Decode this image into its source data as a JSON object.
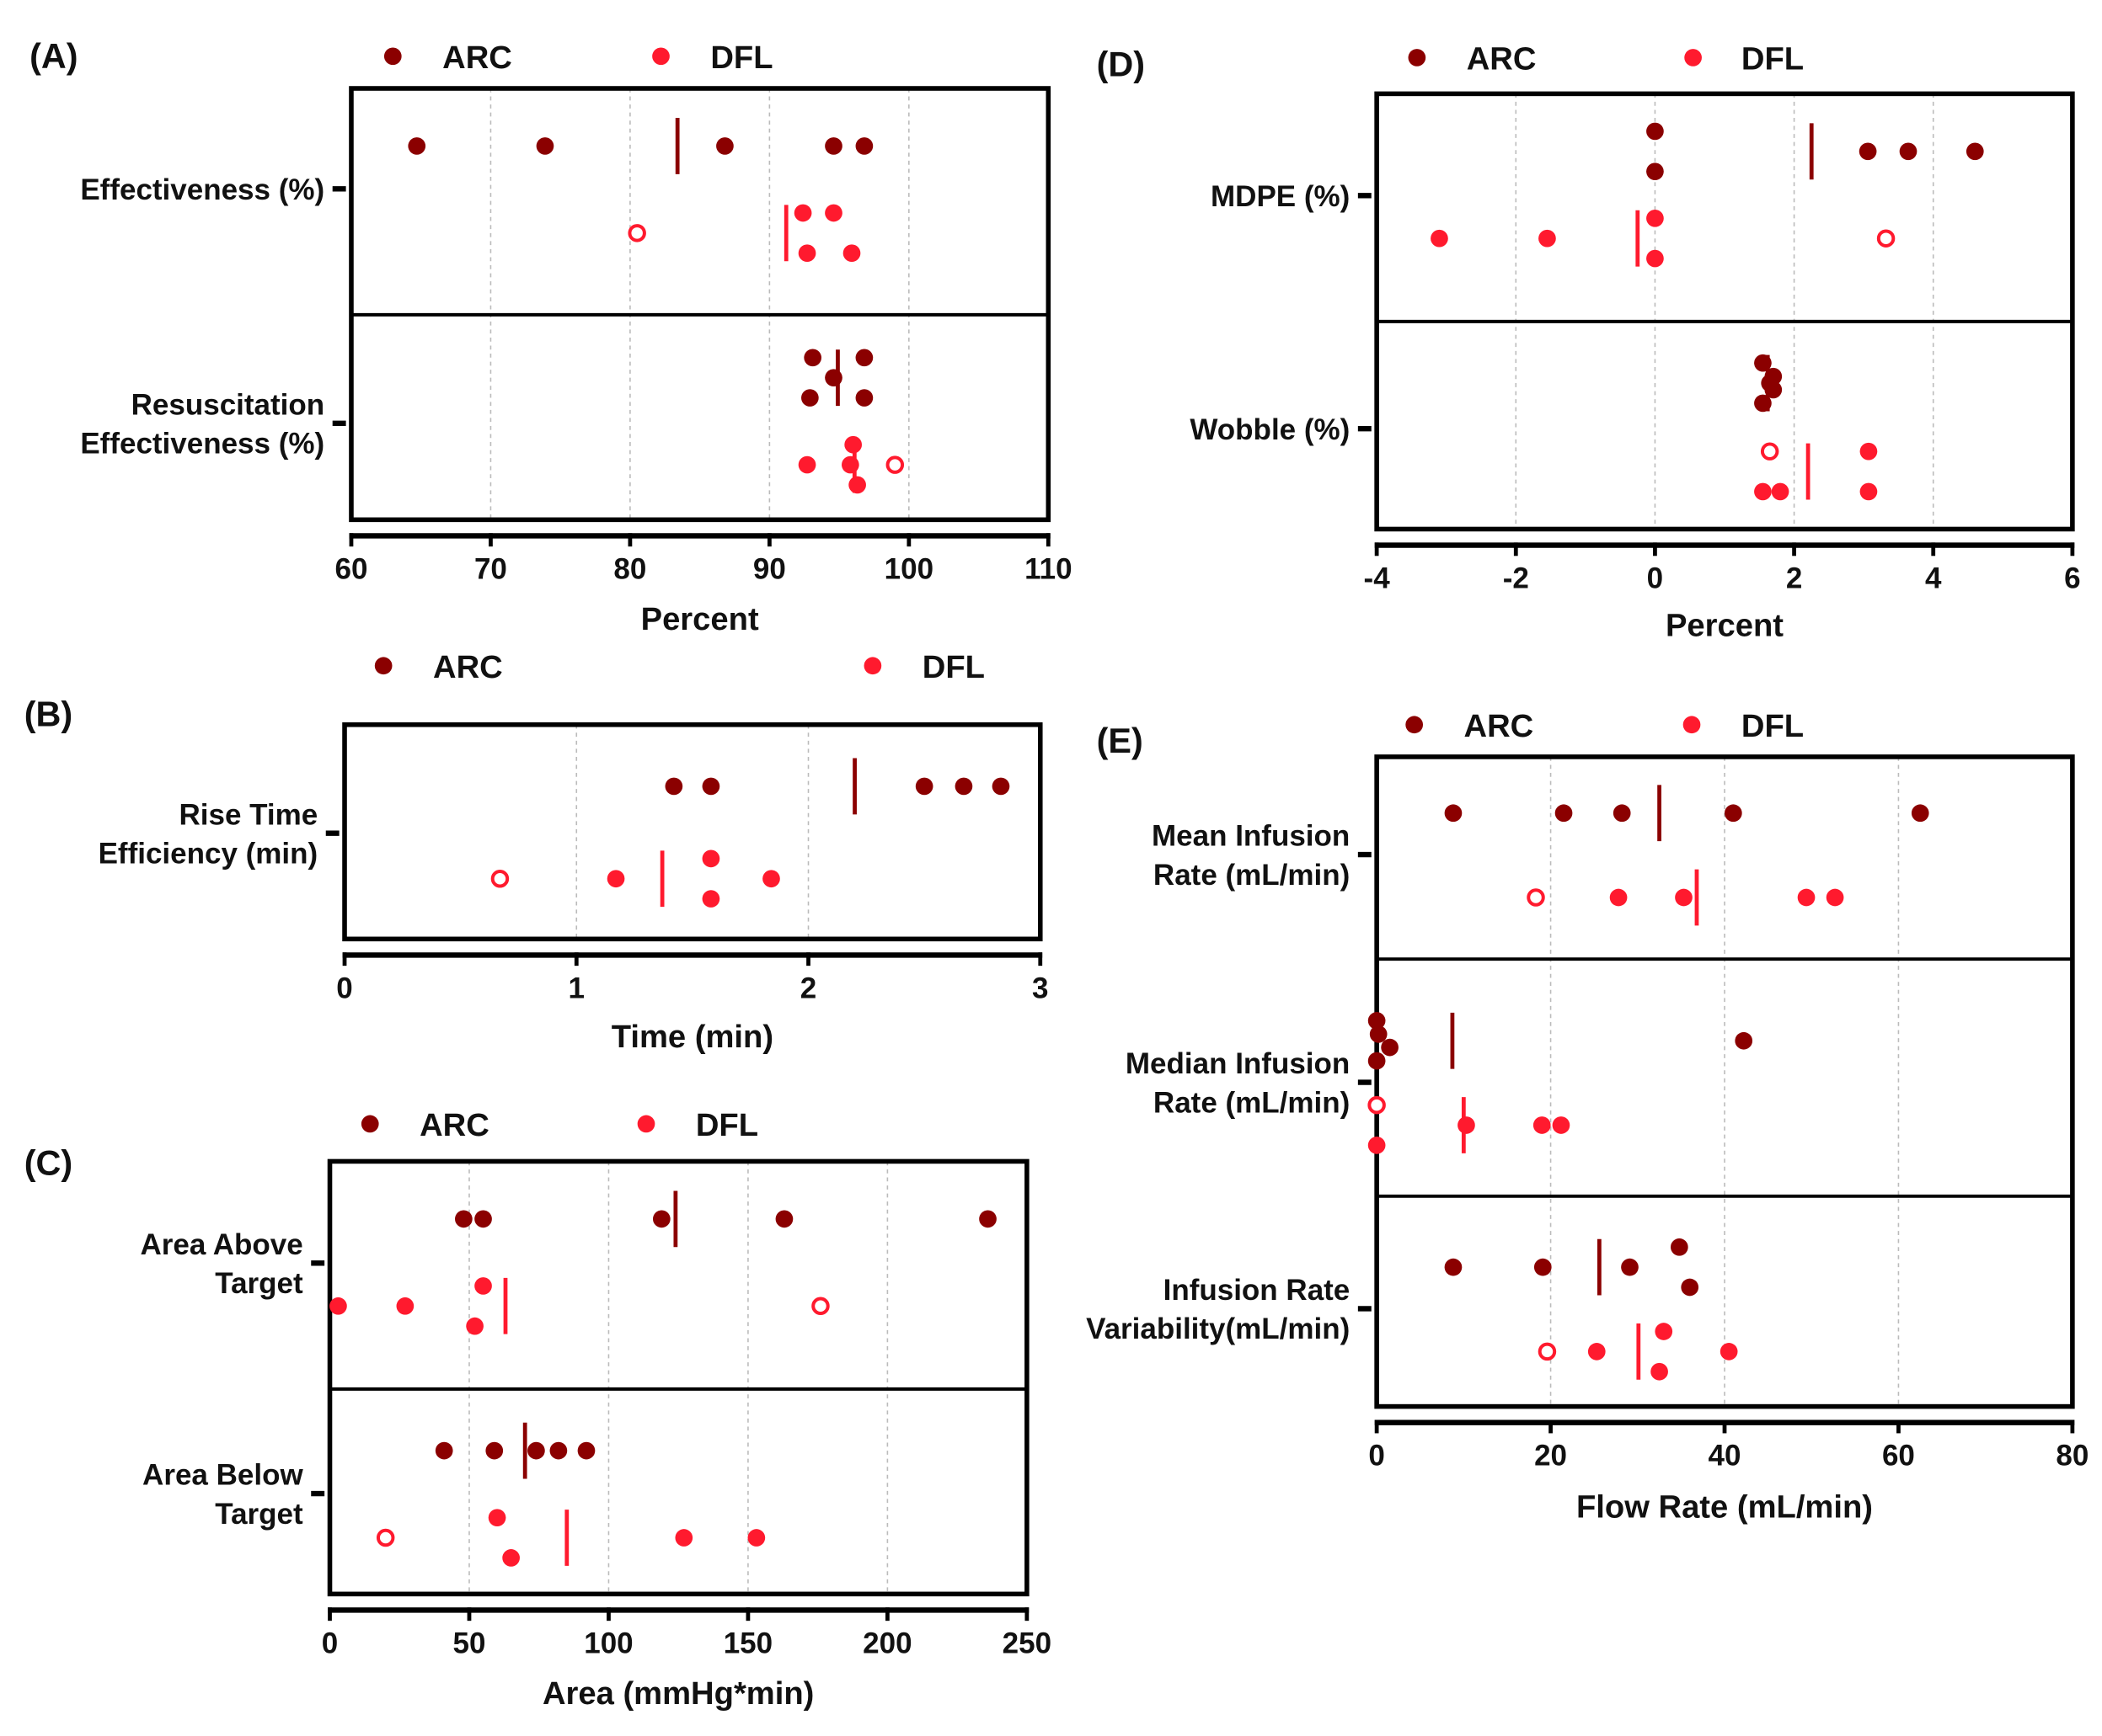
{
  "colors": {
    "ARC": "#8b0000",
    "DFL": "#ff1a2e"
  },
  "chart_data": [
    {
      "panel": "(A)",
      "type": "scatter",
      "xlabel": "Percent",
      "xlim": [
        60,
        110
      ],
      "xticks": [
        "60",
        "70",
        "80",
        "90",
        "100",
        "110"
      ],
      "legend": [
        "ARC",
        "DFL"
      ],
      "legend_position": "top",
      "categories": [
        {
          "label": [
            "Effectiveness (%)"
          ],
          "ARC": {
            "values": [
              64.7,
              73.9,
              86.8,
              94.6,
              96.8
            ],
            "open": [],
            "mean": 83.4
          },
          "DFL": {
            "values": [
              92.4,
              94.6,
              92.7,
              95.9
            ],
            "open": [
              80.5
            ],
            "mean": 91.2
          }
        },
        {
          "label": [
            "Resuscitation",
            "Effectiveness (%)"
          ],
          "ARC": {
            "values": [
              93.1,
              96.8,
              94.6,
              92.9,
              96.8
            ],
            "open": [],
            "mean": 94.9
          },
          "DFL": {
            "values": [
              96.0,
              92.7,
              95.8,
              96.3
            ],
            "open": [
              99.0
            ],
            "mean": 96.1
          }
        }
      ]
    },
    {
      "panel": "(B)",
      "type": "scatter",
      "xlabel": "Time (min)",
      "xlim": [
        0,
        3
      ],
      "xticks": [
        "0",
        "1",
        "2",
        "3"
      ],
      "legend": [
        "ARC",
        "DFL"
      ],
      "legend_position": "top",
      "categories": [
        {
          "label": [
            "Rise Time",
            "Efficiency (min)"
          ],
          "ARC": {
            "values": [
              1.42,
              1.58,
              2.5,
              2.67,
              2.83
            ],
            "open": [],
            "mean": 2.2
          },
          "DFL": {
            "values": [
              1.58,
              1.17,
              1.84,
              1.58
            ],
            "open": [
              0.67
            ],
            "mean": 1.37
          }
        }
      ]
    },
    {
      "panel": "(C)",
      "type": "scatter",
      "xlabel": "Area (mmHg*min)",
      "xlim": [
        0,
        250
      ],
      "xticks": [
        "0",
        "50",
        "100",
        "150",
        "200",
        "250"
      ],
      "legend": [
        "ARC",
        "DFL"
      ],
      "legend_position": "top",
      "categories": [
        {
          "label": [
            "Area Above",
            "Target"
          ],
          "ARC": {
            "values": [
              48,
              55,
              119,
              163,
              236
            ],
            "open": [],
            "mean": 124
          },
          "DFL": {
            "values": [
              55,
              3,
              27,
              52
            ],
            "open": [
              176
            ],
            "mean": 63
          }
        },
        {
          "label": [
            "Area Below",
            "Target"
          ],
          "ARC": {
            "values": [
              41,
              59,
              74,
              82,
              92
            ],
            "open": [],
            "mean": 70
          },
          "DFL": {
            "values": [
              60,
              127,
              153,
              65
            ],
            "open": [
              20
            ],
            "mean": 85
          }
        }
      ]
    },
    {
      "panel": "(D)",
      "type": "scatter",
      "xlabel": "Percent",
      "xlim": [
        -4,
        6
      ],
      "xticks": [
        "-4",
        "-2",
        "0",
        "2",
        "4",
        "6"
      ],
      "legend": [
        "ARC",
        "DFL"
      ],
      "legend_position": "top",
      "categories": [
        {
          "label": [
            "MDPE (%)"
          ],
          "ARC": {
            "values": [
              0,
              3.06,
              3.64,
              4.6,
              0
            ],
            "open": [],
            "mean": 2.25
          },
          "DFL": {
            "values": [
              0,
              -3.1,
              -1.55,
              0
            ],
            "open": [
              3.32
            ],
            "mean": -0.25
          }
        },
        {
          "label": [
            "Wobble (%)"
          ],
          "ARC": {
            "values": [
              1.55,
              1.7,
              1.65,
              1.7,
              1.55
            ],
            "open": [],
            "mean": 1.62
          },
          "DFL": {
            "values": [
              3.07,
              1.55,
              1.8,
              3.07
            ],
            "open": [
              1.65
            ],
            "mean": 2.2
          }
        }
      ]
    },
    {
      "panel": "(E)",
      "type": "scatter",
      "xlabel": "Flow Rate (mL/min)",
      "xlim": [
        0,
        80
      ],
      "xticks": [
        "0",
        "20",
        "40",
        "60",
        "80"
      ],
      "legend": [
        "ARC",
        "DFL"
      ],
      "legend_position": "top",
      "categories": [
        {
          "label": [
            "Mean Infusion",
            "Rate (mL/min)"
          ],
          "ARC": {
            "values": [
              8.8,
              21.5,
              28.2,
              41.0,
              62.5
            ],
            "open": [],
            "mean": 32.5
          },
          "DFL": {
            "values": [
              27.8,
              35.3,
              49.4,
              52.7
            ],
            "open": [
              18.3
            ],
            "mean": 36.8
          }
        },
        {
          "label": [
            "Median Infusion",
            "Rate (mL/min)"
          ],
          "ARC": {
            "values": [
              0,
              0.2,
              1.5,
              42.2,
              0
            ],
            "open": [],
            "mean": 8.7
          },
          "DFL": {
            "values": [
              10.3,
              19.0,
              21.2,
              0
            ],
            "open": [
              0
            ],
            "mean": 10.0
          }
        },
        {
          "label": [
            "Infusion Rate",
            "Variability(mL/min)"
          ],
          "ARC": {
            "values": [
              34.8,
              8.8,
              19.1,
              29.1,
              36.0
            ],
            "open": [],
            "mean": 25.6
          },
          "DFL": {
            "values": [
              33.0,
              25.3,
              40.5,
              32.5
            ],
            "open": [
              19.6
            ],
            "mean": 30.1
          }
        }
      ]
    }
  ]
}
